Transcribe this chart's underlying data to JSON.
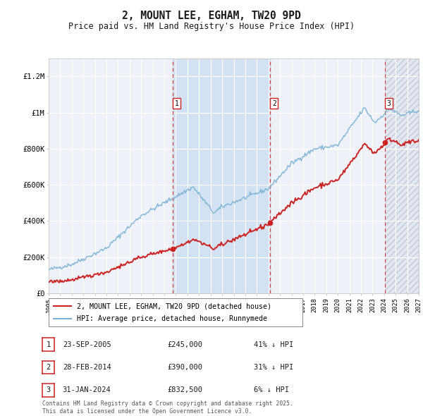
{
  "title": "2, MOUNT LEE, EGHAM, TW20 9PD",
  "subtitle": "Price paid vs. HM Land Registry's House Price Index (HPI)",
  "ylim": [
    0,
    1300000
  ],
  "yticks": [
    0,
    200000,
    400000,
    600000,
    800000,
    1000000,
    1200000
  ],
  "ytick_labels": [
    "£0",
    "£200K",
    "£400K",
    "£600K",
    "£800K",
    "£1M",
    "£1.2M"
  ],
  "hpi_color": "#7ab3d4",
  "price_color": "#cc2222",
  "background_chart": "#eef2f8",
  "background_fig": "#ffffff",
  "grid_color": "#ffffff",
  "sale1_date": 2005.73,
  "sale1_price": 245000,
  "sale2_date": 2014.165,
  "sale2_price": 390000,
  "sale3_date": 2024.08,
  "sale3_price": 832500,
  "xmin": 1995,
  "xmax": 2027,
  "legend_label_price": "2, MOUNT LEE, EGHAM, TW20 9PD (detached house)",
  "legend_label_hpi": "HPI: Average price, detached house, Runnymede",
  "footnote": "Contains HM Land Registry data © Crown copyright and database right 2025.\nThis data is licensed under the Open Government Licence v3.0.",
  "table": [
    [
      "1",
      "23-SEP-2005",
      "£245,000",
      "41% ↓ HPI"
    ],
    [
      "2",
      "28-FEB-2014",
      "£390,000",
      "31% ↓ HPI"
    ],
    [
      "3",
      "31-JAN-2024",
      "£832,500",
      "6% ↓ HPI"
    ]
  ]
}
